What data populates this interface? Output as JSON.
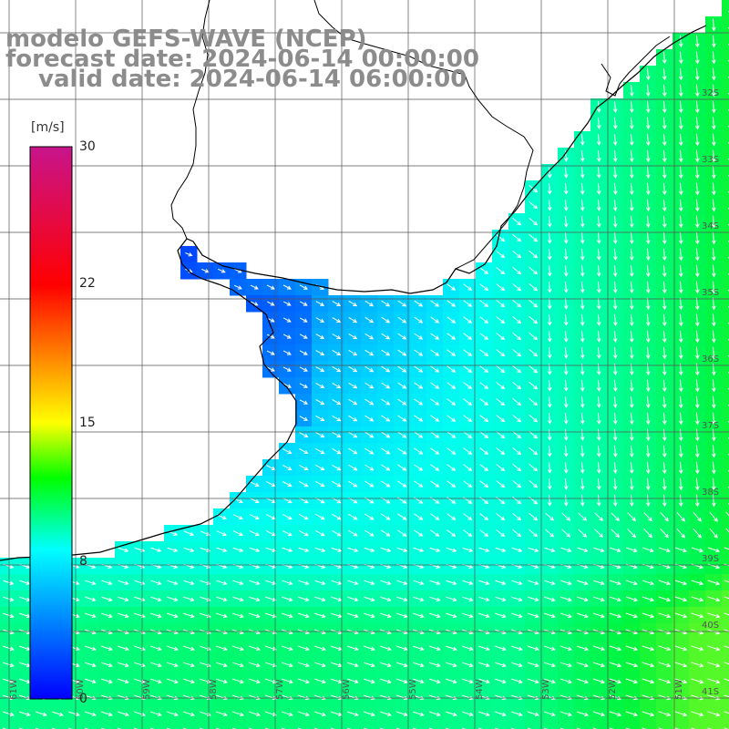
{
  "title": {
    "line1": "modelo GEFS-WAVE (NCEP)",
    "line2": "forecast date: 2024-06-14 00:00:00",
    "line3": "valid date: 2024-06-14 06:00:00"
  },
  "colorbar": {
    "unit": "[m/s]",
    "ticks": [
      "30",
      "22",
      "15",
      "8",
      "0"
    ],
    "tick_values": [
      30,
      22,
      15,
      8,
      0
    ],
    "range": [
      0,
      30
    ],
    "colors": [
      "#0000ff",
      "#00ffff",
      "#00ff00",
      "#ffff00",
      "#ff0000",
      "#c8148c"
    ]
  },
  "map": {
    "variable": "wind speed and direction",
    "land_color": "#ffffff",
    "coastline_color": "#000000",
    "grid_color": "#666666",
    "lat_labels": [
      "32S",
      "33S",
      "34S",
      "35S",
      "36S",
      "37S",
      "38S",
      "39S",
      "40S",
      "41S"
    ],
    "lon_labels": [
      "61W",
      "60W",
      "59W",
      "58W",
      "57W",
      "56W",
      "55W",
      "54W",
      "53W",
      "52W",
      "51W"
    ]
  }
}
